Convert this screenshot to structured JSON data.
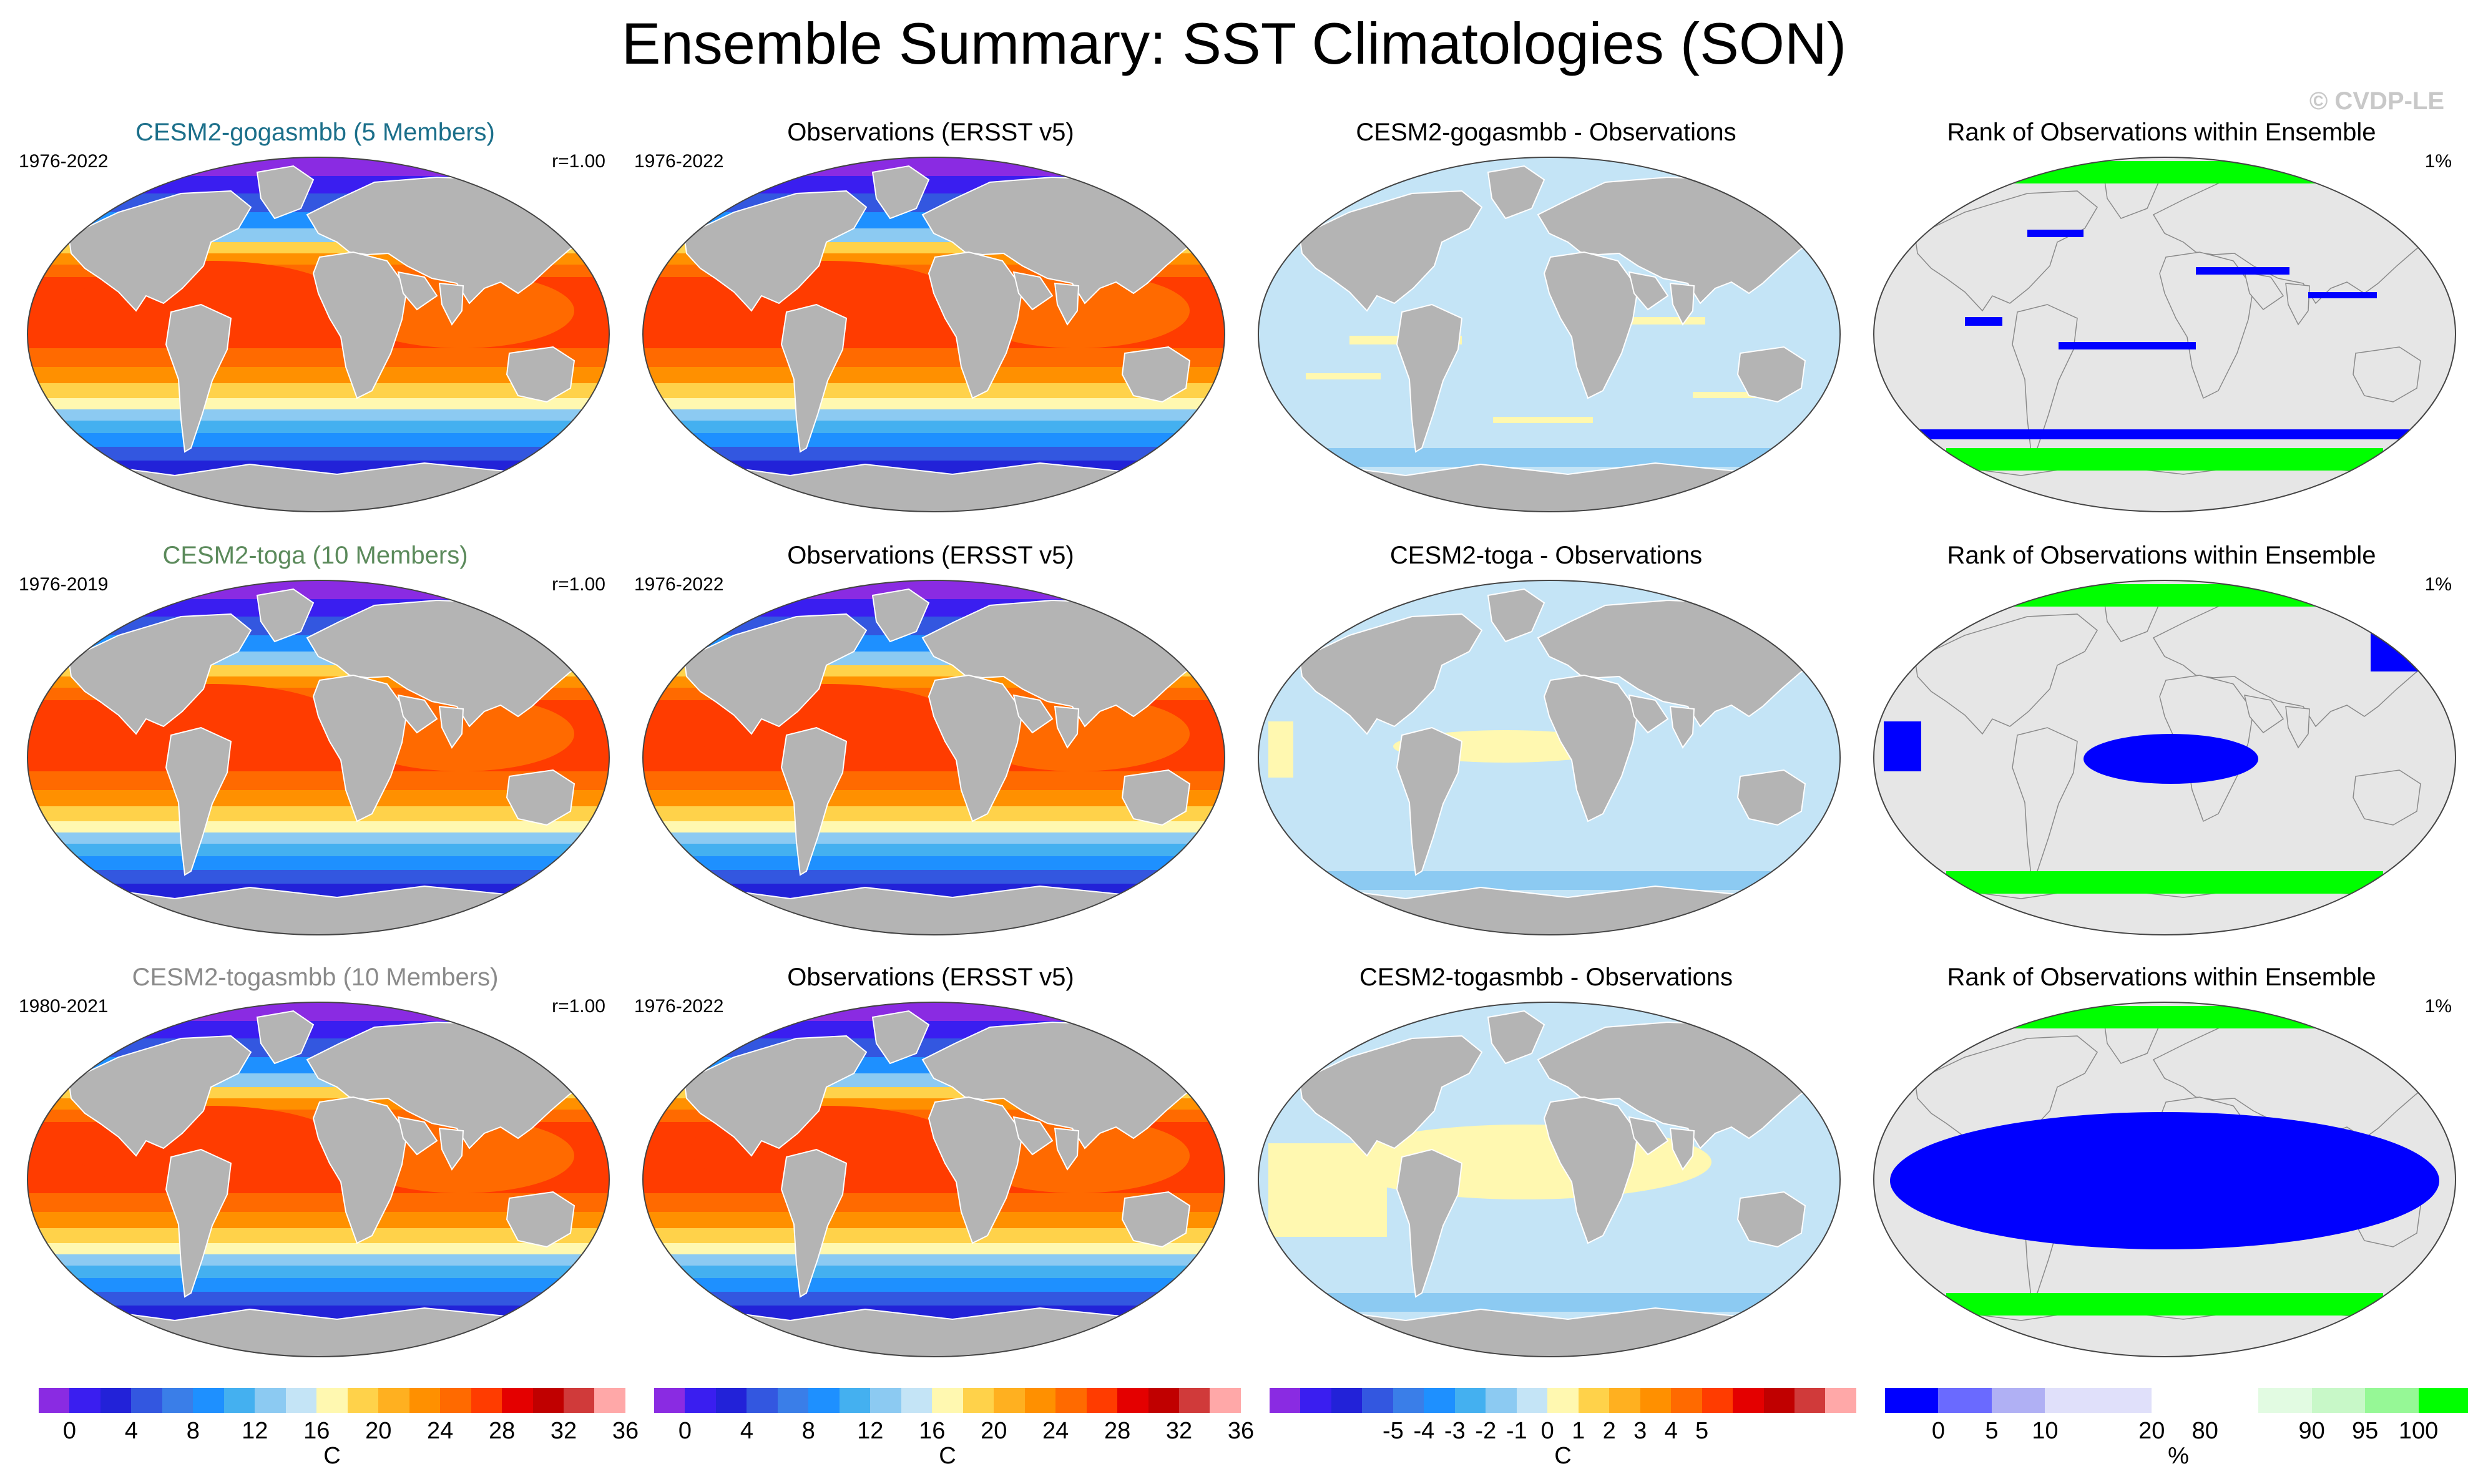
{
  "title": "Ensemble Summary: SST Climatologies (SON)",
  "watermark": "© CVDP-LE",
  "colors": {
    "land": "#b4b4b4",
    "ocean_rank_bg": "#e6e6e6",
    "rank_low": "#0000ff",
    "rank_high": "#00ff00",
    "title_gogasmbb": "#1b6f8a",
    "title_toga": "#5b8a5b",
    "title_togasmbb": "#8a8a8a"
  },
  "rows": [
    {
      "model": {
        "title": "CESM2-gogasmbb (5 Members)",
        "years": "1976-2022",
        "corr": "r=1.00"
      },
      "obs": {
        "title": "Observations (ERSST v5)",
        "years": "1976-2022"
      },
      "diff": {
        "title": "CESM2-gogasmbb - Observations"
      },
      "rank": {
        "title": "Rank of Observations within Ensemble",
        "pct": "1%"
      }
    },
    {
      "model": {
        "title": "CESM2-toga (10 Members)",
        "years": "1976-2019",
        "corr": "r=1.00"
      },
      "obs": {
        "title": "Observations (ERSST v5)",
        "years": "1976-2022"
      },
      "diff": {
        "title": "CESM2-toga - Observations"
      },
      "rank": {
        "title": "Rank of Observations within Ensemble",
        "pct": "1%"
      }
    },
    {
      "model": {
        "title": "CESM2-togasmbb (10 Members)",
        "years": "1980-2021",
        "corr": "r=1.00"
      },
      "obs": {
        "title": "Observations (ERSST v5)",
        "years": "1976-2022"
      },
      "diff": {
        "title": "CESM2-togasmbb - Observations"
      },
      "rank": {
        "title": "Rank of Observations within Ensemble",
        "pct": "1%"
      }
    }
  ],
  "colorbars": [
    {
      "unit": "C",
      "colors": [
        "#8a2be2",
        "#3a1ef0",
        "#2222d8",
        "#3357e0",
        "#3a7ee8",
        "#1e90ff",
        "#44b0f0",
        "#8ccaf2",
        "#c4e4f6",
        "#fff8b0",
        "#ffd24a",
        "#ffb020",
        "#ff9000",
        "#ff6a00",
        "#ff3c00",
        "#e40000",
        "#c00000",
        "#d03a3a",
        "#ffa8a8"
      ],
      "ticks": [
        "0",
        "4",
        "8",
        "12",
        "16",
        "20",
        "24",
        "28",
        "32",
        "36"
      ]
    },
    {
      "unit": "C",
      "colors": [
        "#8a2be2",
        "#3a1ef0",
        "#2222d8",
        "#3357e0",
        "#3a7ee8",
        "#1e90ff",
        "#44b0f0",
        "#8ccaf2",
        "#c4e4f6",
        "#fff8b0",
        "#ffd24a",
        "#ffb020",
        "#ff9000",
        "#ff6a00",
        "#ff3c00",
        "#e40000",
        "#c00000",
        "#d03a3a",
        "#ffa8a8"
      ],
      "ticks": [
        "0",
        "4",
        "8",
        "12",
        "16",
        "20",
        "24",
        "28",
        "32",
        "36"
      ]
    },
    {
      "unit": "C",
      "colors": [
        "#8a2be2",
        "#3a1ef0",
        "#2222d8",
        "#3357e0",
        "#3a7ee8",
        "#1e90ff",
        "#44b0f0",
        "#8ccaf2",
        "#c4e4f6",
        "#fff8b0",
        "#ffd24a",
        "#ffb020",
        "#ff9000",
        "#ff6a00",
        "#ff3c00",
        "#e40000",
        "#c00000",
        "#d03a3a",
        "#ffa8a8"
      ],
      "ticks": [
        "-5",
        "-4",
        "-3",
        "-2",
        "-1",
        "0",
        "1",
        "2",
        "3",
        "4",
        "5"
      ]
    },
    {
      "unit": "%",
      "colors": [
        "#0000ff",
        "#6a6aff",
        "#b0b0f4",
        "#e0e0fa",
        "#e0e0fa",
        "#ffffff",
        "#ffffff",
        "#e2fbe2",
        "#c8f8c8",
        "#96f896",
        "#00ff00"
      ],
      "ticks": [
        "0",
        "5",
        "10",
        "20",
        "80",
        "90",
        "95",
        "100"
      ]
    }
  ]
}
